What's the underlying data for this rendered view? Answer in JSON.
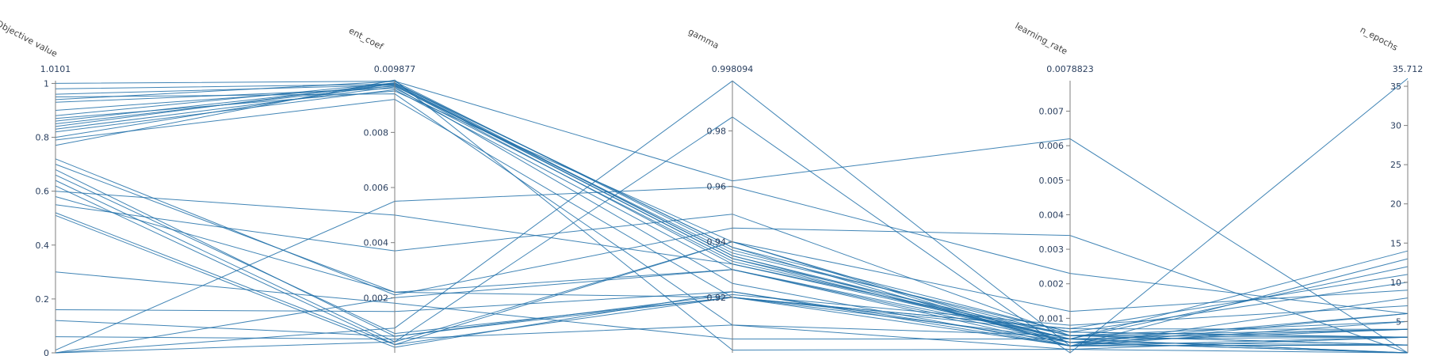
{
  "chart_data": {
    "type": "parallel-coordinates",
    "line_color": "#1f6fa8",
    "axes": [
      {
        "key": "objective",
        "label": "Objective value",
        "range": [
          0,
          1.0101
        ],
        "max_label": "1.0101",
        "ticks": [
          0,
          0.2,
          0.4,
          0.6,
          0.8,
          1
        ],
        "tick_labels": [
          "0",
          "0.2",
          "0.4",
          "0.6",
          "0.8",
          "1"
        ]
      },
      {
        "key": "ent_coef",
        "label": "ent_coef",
        "range": [
          0,
          0.009877
        ],
        "max_label": "0.009877",
        "ticks": [
          0.002,
          0.004,
          0.006,
          0.008
        ],
        "tick_labels": [
          "0.002",
          "0.004",
          "0.006",
          "0.008"
        ]
      },
      {
        "key": "gamma",
        "label": "gamma",
        "range": [
          0.9,
          0.998094
        ],
        "max_label": "0.998094",
        "ticks": [
          0.92,
          0.94,
          0.96,
          0.98
        ],
        "tick_labels": [
          "0.92",
          "0.94",
          "0.96",
          "0.98"
        ]
      },
      {
        "key": "learning_rate",
        "label": "learning_rate",
        "range": [
          0,
          0.0078823
        ],
        "max_label": "0.0078823",
        "ticks": [
          0.001,
          0.002,
          0.003,
          0.004,
          0.005,
          0.006,
          0.007
        ],
        "tick_labels": [
          "0.001",
          "0.002",
          "0.003",
          "0.004",
          "0.005",
          "0.006",
          "0.007"
        ]
      },
      {
        "key": "n_epochs",
        "label": "n_epochs",
        "range": [
          1,
          35.712
        ],
        "max_label": "35.712",
        "ticks": [
          5,
          10,
          15,
          20,
          25,
          30,
          35
        ],
        "tick_labels": [
          "5",
          "10",
          "15",
          "20",
          "25",
          "30",
          "35"
        ]
      }
    ],
    "trials": [
      [
        1.0,
        0.00986,
        0.962,
        0.0062,
        1
      ],
      [
        0.98,
        0.00975,
        0.935,
        0.0004,
        1
      ],
      [
        0.96,
        0.00972,
        0.934,
        0.0003,
        2
      ],
      [
        0.95,
        0.0094,
        0.91,
        0.0001,
        3
      ],
      [
        0.94,
        0.00985,
        0.937,
        0.0005,
        2
      ],
      [
        0.93,
        0.0096,
        0.933,
        0.0004,
        4
      ],
      [
        0.9,
        0.00968,
        0.936,
        0.0006,
        3
      ],
      [
        0.88,
        0.0098,
        0.938,
        0.0002,
        5
      ],
      [
        0.87,
        0.0095,
        0.94,
        0.0003,
        6
      ],
      [
        0.86,
        0.00975,
        0.934,
        0.0005,
        2
      ],
      [
        0.85,
        0.0097,
        0.932,
        0.0004,
        3
      ],
      [
        0.84,
        0.0098,
        0.935,
        0.0003,
        4
      ],
      [
        0.83,
        0.00965,
        0.925,
        0.0002,
        2
      ],
      [
        0.82,
        0.00955,
        0.93,
        0.0004,
        1
      ],
      [
        0.8,
        0.00978,
        0.938,
        0.0006,
        3
      ],
      [
        0.79,
        0.0092,
        0.92,
        0.0002,
        2
      ],
      [
        0.77,
        0.0099,
        0.901,
        0.0001,
        1
      ],
      [
        0.72,
        0.0021,
        0.945,
        0.0034,
        1
      ],
      [
        0.7,
        0.0022,
        0.92,
        0.0006,
        10
      ],
      [
        0.68,
        0.0006,
        0.921,
        0.0008,
        7
      ],
      [
        0.66,
        0.0007,
        0.92,
        0.0004,
        12
      ],
      [
        0.64,
        0.0004,
        0.94,
        0.0012,
        9
      ],
      [
        0.62,
        0.0003,
        0.94,
        0.0002,
        13
      ],
      [
        0.6,
        0.005,
        0.932,
        0.0005,
        4
      ],
      [
        0.58,
        0.0022,
        0.93,
        0.0003,
        1
      ],
      [
        0.55,
        0.0037,
        0.95,
        0.0005,
        3
      ],
      [
        0.52,
        0.0003,
        0.92,
        0.0007,
        11
      ],
      [
        0.51,
        0.0002,
        0.922,
        0.0003,
        1
      ],
      [
        0.3,
        0.0018,
        0.905,
        0.0004,
        14
      ],
      [
        0.16,
        0.0015,
        0.922,
        0.0002,
        6
      ],
      [
        0.12,
        0.0006,
        0.92,
        0.0007,
        4
      ],
      [
        0.06,
        0.0005,
        0.91,
        0.0005,
        5
      ],
      [
        0.01,
        0.0055,
        0.96,
        0.0023,
        6
      ],
      [
        0.0,
        0.0009,
        0.998,
        0.0002,
        3
      ],
      [
        0.0,
        0.0004,
        0.985,
        0.0,
        36
      ],
      [
        0.0,
        0.002,
        0.93,
        0.0002,
        8
      ]
    ]
  }
}
